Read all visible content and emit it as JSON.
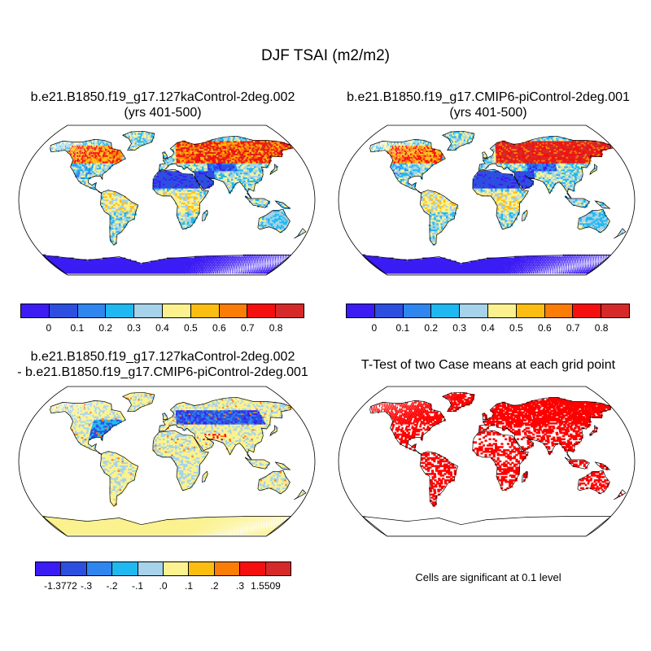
{
  "figure": {
    "main_title": "DJF TSAI (m2/m2)"
  },
  "panels": {
    "top_left": {
      "title_line1": "b.e21.B1850.f19_g17.127kaControl-2deg.002",
      "title_line2": "(yrs 401-500)"
    },
    "top_right": {
      "title_line1": "b.e21.B1850.f19_g17.CMIP6-piControl-2deg.001",
      "title_line2": "(yrs 401-500)"
    },
    "bottom_left": {
      "title_line1": "b.e21.B1850.f19_g17.127kaControl-2deg.002",
      "title_line2": "- b.e21.B1850.f19_g17.CMIP6-piControl-2deg.001"
    },
    "bottom_right": {
      "title_line1": "T-Test of two Case means at each grid point",
      "note": "Cells are significant at 0.1 level"
    }
  },
  "colorbars": {
    "abs": {
      "colors": [
        "#3b1cf4",
        "#2d4fdf",
        "#2f86ef",
        "#20b8f0",
        "#a6d2ea",
        "#fbf28f",
        "#fcbd11",
        "#fb7d08",
        "#f50f0e",
        "#d52a29"
      ],
      "labels": [
        "0",
        "0.1",
        "0.2",
        "0.3",
        "0.4",
        "0.5",
        "0.6",
        "0.7",
        "0.8"
      ]
    },
    "diff": {
      "colors": [
        "#3b1cf4",
        "#2d4fdf",
        "#2f86ef",
        "#20b8f0",
        "#a6d2ea",
        "#fbf28f",
        "#fcbd11",
        "#fb7d08",
        "#f50f0e",
        "#d52a29"
      ],
      "labels": [
        "-1.3772",
        "-.3",
        "-.2",
        "-.1",
        ".0",
        ".1",
        ".2",
        ".3",
        "1.5509"
      ]
    }
  },
  "legend_colors": {
    "ocean": "#ffffff",
    "significant": "#ff0000",
    "coast": "#000000"
  }
}
